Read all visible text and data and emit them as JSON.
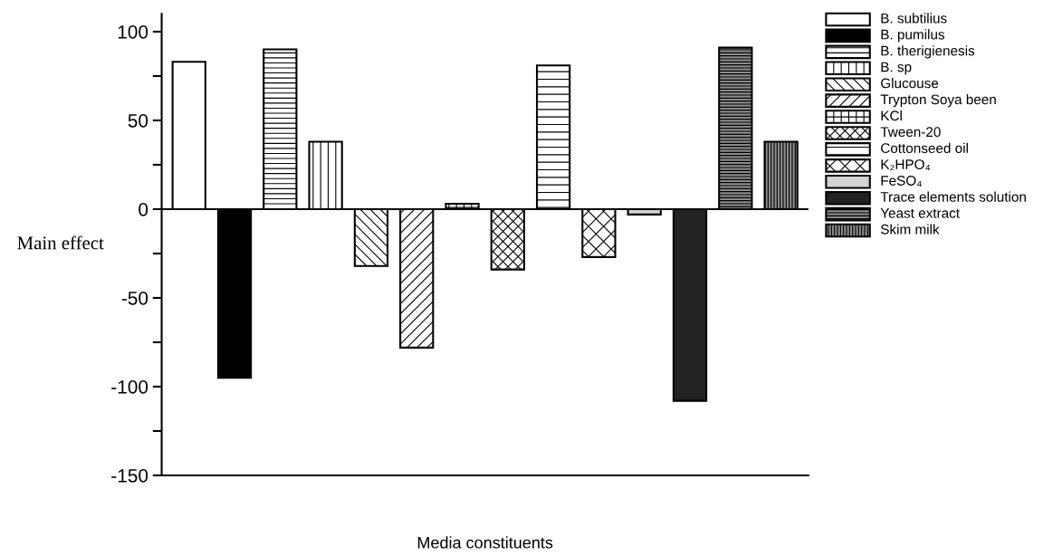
{
  "chart_data": {
    "type": "bar",
    "xlabel": "Media constituents",
    "ylabel": "Main effect",
    "categories": [
      null,
      null,
      null,
      null,
      null,
      null,
      null,
      null,
      null,
      null,
      null,
      null,
      null,
      null
    ],
    "series": [
      {
        "name": "B. subtilius",
        "color": "#ffffff",
        "values": [
          83,
          null,
          null,
          null,
          null,
          null,
          null,
          null,
          null,
          null,
          null,
          null,
          null,
          null
        ]
      },
      {
        "name": "B. pumilus",
        "color": "#000000",
        "values": [
          null,
          -95,
          null,
          null,
          null,
          null,
          null,
          null,
          null,
          null,
          null,
          null,
          null,
          null
        ]
      },
      {
        "name": "B. therigienesis",
        "color": "#ffffff",
        "values": [
          null,
          null,
          90,
          null,
          null,
          null,
          null,
          null,
          null,
          null,
          null,
          null,
          null,
          null
        ]
      },
      {
        "name": "B. sp",
        "color": "#ffffff",
        "values": [
          null,
          null,
          null,
          38,
          null,
          null,
          null,
          null,
          null,
          null,
          null,
          null,
          null,
          null
        ]
      },
      {
        "name": "Glucouse",
        "color": "#ffffff",
        "values": [
          null,
          null,
          null,
          null,
          -32,
          null,
          null,
          null,
          null,
          null,
          null,
          null,
          null,
          null
        ]
      },
      {
        "name": "Trypton Soya been",
        "color": "#ffffff",
        "values": [
          null,
          null,
          null,
          null,
          null,
          -78,
          null,
          null,
          null,
          null,
          null,
          null,
          null,
          null
        ]
      },
      {
        "name": "KCl",
        "color": "#ffffff",
        "values": [
          null,
          null,
          null,
          null,
          null,
          null,
          3,
          null,
          null,
          null,
          null,
          null,
          null,
          null
        ]
      },
      {
        "name": "Tween-20",
        "color": "#ffffff",
        "values": [
          null,
          null,
          null,
          null,
          null,
          null,
          null,
          -34,
          null,
          null,
          null,
          null,
          null,
          null
        ]
      },
      {
        "name": "Cottonseed oil",
        "color": "#ffffff",
        "values": [
          null,
          null,
          null,
          null,
          null,
          null,
          null,
          null,
          81,
          null,
          null,
          null,
          null,
          null
        ]
      },
      {
        "name": "K₂HPO₄",
        "color": "#ffffff",
        "values": [
          null,
          null,
          null,
          null,
          null,
          null,
          null,
          null,
          null,
          -27,
          null,
          null,
          null,
          null
        ]
      },
      {
        "name": "FeSO₄",
        "color": "#d3d3d3",
        "values": [
          null,
          null,
          null,
          null,
          null,
          null,
          null,
          null,
          null,
          null,
          -3,
          null,
          null,
          null
        ]
      },
      {
        "name": "Trace elements solution",
        "color": "#222222",
        "values": [
          null,
          null,
          null,
          null,
          null,
          null,
          null,
          null,
          null,
          null,
          null,
          -108,
          null,
          null
        ]
      },
      {
        "name": "Yeast extract",
        "color": "#8c8c8c",
        "values": [
          null,
          null,
          null,
          null,
          null,
          null,
          null,
          null,
          null,
          null,
          null,
          null,
          91,
          null
        ]
      },
      {
        "name": "Skim milk",
        "color": "#8c8c8c",
        "values": [
          null,
          null,
          null,
          null,
          null,
          null,
          null,
          null,
          null,
          null,
          null,
          null,
          null,
          38
        ]
      }
    ],
    "ylim": [
      -150,
      110
    ],
    "yticks": [
      -150,
      {
        "value": -125,
        "label": null
      },
      -100,
      {
        "value": -75,
        "label": null
      },
      -50,
      {
        "value": -25,
        "label": null
      },
      0,
      {
        "value": 25,
        "label": null
      },
      50,
      {
        "value": 75,
        "label": null
      },
      100
    ],
    "ref_lines": [
      {
        "axis": "y",
        "value": 0,
        "label": null,
        "color": "#000000"
      }
    ],
    "tick_labels": "y",
    "legend": "right",
    "grid": false
  }
}
